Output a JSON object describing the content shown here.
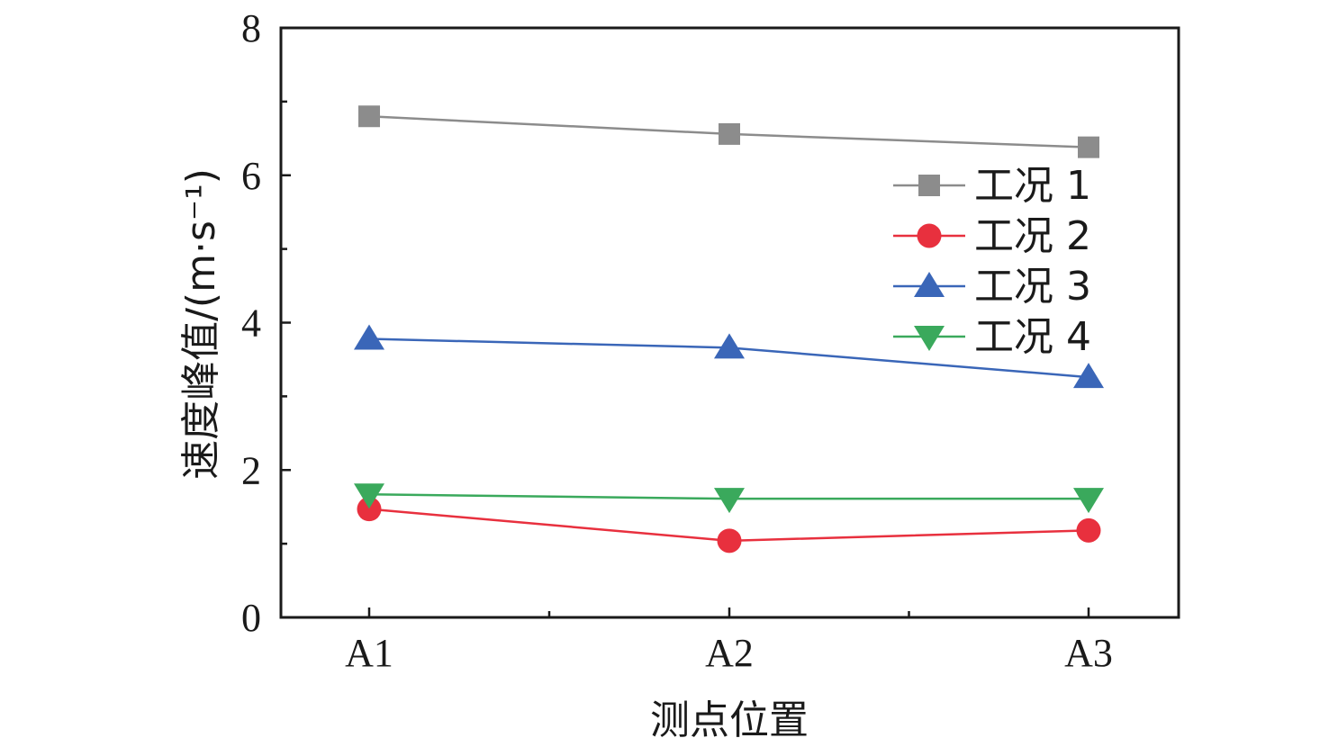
{
  "chart_data": {
    "type": "line",
    "xlabel": "测点位置",
    "ylabel": "速度峰值/(m·s⁻¹)",
    "categories": [
      "A1",
      "A2",
      "A3"
    ],
    "ylim": [
      0,
      8
    ],
    "yticks": [
      "0",
      "2",
      "4",
      "6",
      "8"
    ],
    "grid": false,
    "legend_position": "right",
    "series": [
      {
        "name": "工况 1",
        "color": "#8c8c8c",
        "marker": "square",
        "values": [
          6.8,
          6.56,
          6.38
        ]
      },
      {
        "name": "工况 2",
        "color": "#e8303e",
        "marker": "circle",
        "values": [
          1.47,
          1.04,
          1.18
        ]
      },
      {
        "name": "工况 3",
        "color": "#3a66b8",
        "marker": "triangle-up",
        "values": [
          3.78,
          3.66,
          3.26
        ]
      },
      {
        "name": "工况 4",
        "color": "#3aa95c",
        "marker": "triangle-down",
        "values": [
          1.67,
          1.61,
          1.61
        ]
      }
    ]
  }
}
